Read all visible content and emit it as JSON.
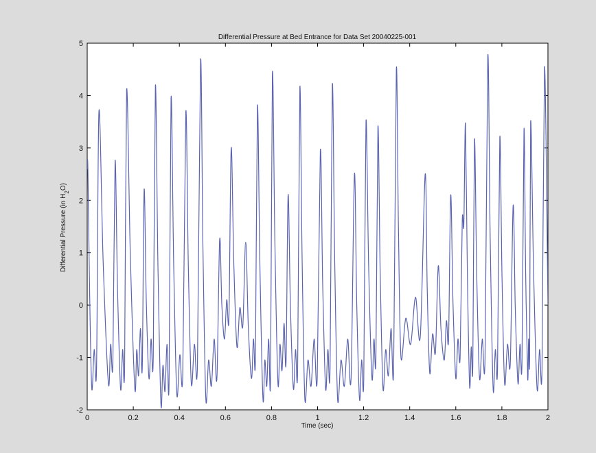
{
  "chart_data": {
    "type": "line",
    "title": "Differential Pressure at Bed Entrance for Data Set 20040225-001",
    "xlabel": "Time (sec)",
    "ylabel_parts": [
      "Differential Pressure (in H",
      "2",
      "O)"
    ],
    "xlim": [
      0,
      2
    ],
    "ylim": [
      -2,
      5
    ],
    "xticks": [
      0,
      0.2,
      0.4,
      0.6,
      0.8,
      1,
      1.2,
      1.4,
      1.6,
      1.8,
      2
    ],
    "xtick_labels": [
      "0",
      "0.2",
      "0.4",
      "0.6",
      "0.8",
      "1",
      "1.2",
      "1.4",
      "1.6",
      "1.8",
      "2"
    ],
    "yticks": [
      -2,
      -1,
      0,
      1,
      2,
      3,
      4,
      5
    ],
    "ytick_labels": [
      "-2",
      "-1",
      "0",
      "1",
      "2",
      "3",
      "4",
      "5"
    ],
    "grid": false,
    "line_color": "#5b64b0",
    "series": [
      {
        "peaks": [
          {
            "t": 0.003,
            "v": 2.6
          },
          {
            "t": 0.051,
            "v": 3.7
          },
          {
            "t": 0.121,
            "v": 2.75
          },
          {
            "t": 0.171,
            "v": 4.1
          },
          {
            "t": 0.247,
            "v": 2.2
          },
          {
            "t": 0.296,
            "v": 4.18
          },
          {
            "t": 0.364,
            "v": 3.95
          },
          {
            "t": 0.428,
            "v": 3.68
          },
          {
            "t": 0.492,
            "v": 4.67
          },
          {
            "t": 0.575,
            "v": 1.25
          },
          {
            "t": 0.625,
            "v": 3.0
          },
          {
            "t": 0.688,
            "v": 1.2
          },
          {
            "t": 0.739,
            "v": 3.8
          },
          {
            "t": 0.804,
            "v": 4.42
          },
          {
            "t": 0.872,
            "v": 2.1
          },
          {
            "t": 0.923,
            "v": 4.15
          },
          {
            "t": 1.012,
            "v": 2.95
          },
          {
            "t": 1.064,
            "v": 4.2
          },
          {
            "t": 1.16,
            "v": 2.5
          },
          {
            "t": 1.21,
            "v": 3.5
          },
          {
            "t": 1.262,
            "v": 3.4
          },
          {
            "t": 1.342,
            "v": 4.5
          },
          {
            "t": 1.467,
            "v": 2.5
          },
          {
            "t": 1.524,
            "v": 0.75
          },
          {
            "t": 1.578,
            "v": 2.1
          },
          {
            "t": 1.628,
            "v": 1.6
          },
          {
            "t": 1.642,
            "v": 3.47
          },
          {
            "t": 1.681,
            "v": 3.15
          },
          {
            "t": 1.739,
            "v": 4.75
          },
          {
            "t": 1.791,
            "v": 3.2
          },
          {
            "t": 1.849,
            "v": 1.9
          },
          {
            "t": 1.896,
            "v": 3.35
          },
          {
            "t": 1.925,
            "v": 3.5
          },
          {
            "t": 1.985,
            "v": 4.55
          }
        ],
        "troughs": [
          {
            "t": 0.02,
            "v": -1.6
          },
          {
            "t": 0.092,
            "v": -1.5
          },
          {
            "t": 0.145,
            "v": -1.6
          },
          {
            "t": 0.207,
            "v": -1.6
          },
          {
            "t": 0.268,
            "v": -1.4
          },
          {
            "t": 0.32,
            "v": -1.9
          },
          {
            "t": 0.389,
            "v": -1.7
          },
          {
            "t": 0.452,
            "v": -1.5
          },
          {
            "t": 0.515,
            "v": -1.8
          },
          {
            "t": 0.596,
            "v": -0.65
          },
          {
            "t": 0.65,
            "v": -0.8
          },
          {
            "t": 0.713,
            "v": -1.4
          },
          {
            "t": 0.763,
            "v": -1.8
          },
          {
            "t": 0.828,
            "v": -1.5
          },
          {
            "t": 0.895,
            "v": -1.6
          },
          {
            "t": 0.945,
            "v": -1.8
          },
          {
            "t": 1.035,
            "v": -1.6
          },
          {
            "t": 1.087,
            "v": -1.8
          },
          {
            "t": 1.182,
            "v": -1.8
          },
          {
            "t": 1.236,
            "v": -1.4
          },
          {
            "t": 1.284,
            "v": -1.6
          },
          {
            "t": 1.362,
            "v": -1.0
          },
          {
            "t": 1.487,
            "v": -1.3
          },
          {
            "t": 1.55,
            "v": -1.05
          },
          {
            "t": 1.6,
            "v": -1.4
          },
          {
            "t": 1.66,
            "v": -1.55
          },
          {
            "t": 1.703,
            "v": -1.4
          },
          {
            "t": 1.762,
            "v": -1.6
          },
          {
            "t": 1.812,
            "v": -1.5
          },
          {
            "t": 1.87,
            "v": -1.5
          },
          {
            "t": 1.912,
            "v": -1.4
          },
          {
            "t": 1.953,
            "v": -1.6
          }
        ]
      }
    ]
  }
}
